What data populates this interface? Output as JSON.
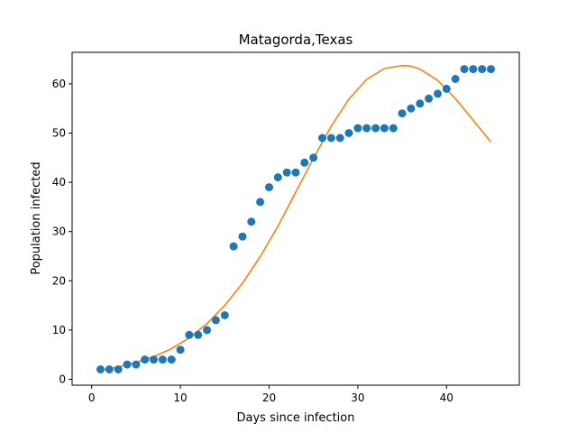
{
  "chart_data": {
    "type": "scatter",
    "title": "Matagorda,Texas",
    "xlabel": "Days since infection",
    "ylabel": "Population infected",
    "xlim": [
      -2.2,
      48.2
    ],
    "ylim": [
      -1.2,
      66.4
    ],
    "xticks": [
      0,
      10,
      20,
      30,
      40
    ],
    "yticks": [
      0,
      10,
      20,
      30,
      40,
      50,
      60
    ],
    "grid": false,
    "series": [
      {
        "kind": "scatter",
        "color": "#1f77b4",
        "x": [
          1,
          2,
          3,
          4,
          5,
          6,
          7,
          8,
          9,
          10,
          11,
          12,
          13,
          14,
          15,
          16,
          17,
          18,
          19,
          20,
          21,
          22,
          23,
          24,
          25,
          26,
          27,
          28,
          29,
          30,
          31,
          32,
          33,
          34,
          35,
          36,
          37,
          38,
          39,
          40,
          41,
          42,
          43,
          44,
          45
        ],
        "y": [
          2,
          2,
          2,
          3,
          3,
          4,
          4,
          4,
          4,
          6,
          9,
          9,
          10,
          12,
          13,
          27,
          29,
          32,
          36,
          39,
          41,
          42,
          42,
          44,
          45,
          49,
          49,
          49,
          50,
          51,
          51,
          51,
          51,
          51,
          54,
          55,
          56,
          57,
          58,
          59,
          61,
          63,
          63,
          63,
          63
        ]
      },
      {
        "kind": "line",
        "color": "#ff7f0e",
        "x": [
          1,
          3,
          5,
          7,
          9,
          11,
          13,
          15,
          17,
          19,
          21,
          23,
          25,
          27,
          29,
          31,
          33,
          35,
          36,
          37,
          39,
          41,
          43,
          45
        ],
        "y": [
          1.8,
          2.5,
          3.4,
          4.6,
          6.2,
          8.4,
          11.3,
          15.0,
          19.5,
          24.9,
          31.1,
          38.0,
          44.9,
          51.4,
          56.9,
          60.9,
          63.1,
          63.7,
          63.6,
          63.0,
          60.7,
          57.0,
          52.6,
          48.2
        ]
      }
    ]
  }
}
